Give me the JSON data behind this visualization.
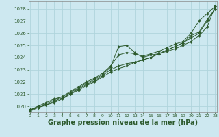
{
  "bg_color": "#cde8f0",
  "grid_color": "#b0d4dc",
  "line_color": "#2d5a2d",
  "xlabel": "Graphe pression niveau de la mer (hPa)",
  "xlabel_fontsize": 7,
  "ylabel_ticks": [
    1020,
    1021,
    1022,
    1023,
    1024,
    1025,
    1026,
    1027,
    1028
  ],
  "xticks": [
    0,
    1,
    2,
    3,
    4,
    5,
    6,
    7,
    8,
    9,
    10,
    11,
    12,
    13,
    14,
    15,
    16,
    17,
    18,
    19,
    20,
    21,
    22,
    23
  ],
  "ylim": [
    1019.5,
    1028.6
  ],
  "xlim": [
    -0.2,
    23.2
  ],
  "series": [
    [
      1019.7,
      1020.0,
      1020.3,
      1020.6,
      1020.8,
      1021.1,
      1021.5,
      1021.9,
      1022.2,
      1022.6,
      1023.2,
      1024.9,
      1025.0,
      1024.4,
      1024.0,
      1024.2,
      1024.3,
      1024.5,
      1024.7,
      1025.0,
      1025.3,
      1025.8,
      1026.5,
      1028.2
    ],
    [
      1019.7,
      1020.0,
      1020.2,
      1020.5,
      1020.8,
      1021.2,
      1021.6,
      1022.0,
      1022.3,
      1022.7,
      1023.3,
      1024.2,
      1024.4,
      1024.3,
      1024.1,
      1024.3,
      1024.5,
      1024.8,
      1025.1,
      1025.3,
      1026.0,
      1027.0,
      1027.6,
      1028.2
    ],
    [
      1019.7,
      1019.9,
      1020.1,
      1020.4,
      1020.7,
      1021.0,
      1021.4,
      1021.8,
      1022.1,
      1022.5,
      1023.0,
      1023.3,
      1023.5,
      1023.6,
      1023.8,
      1024.0,
      1024.3,
      1024.6,
      1024.9,
      1025.2,
      1025.8,
      1026.1,
      1027.1,
      1028.0
    ],
    [
      1019.6,
      1019.9,
      1020.1,
      1020.3,
      1020.6,
      1021.0,
      1021.3,
      1021.7,
      1022.0,
      1022.4,
      1022.8,
      1023.1,
      1023.3,
      1023.6,
      1023.8,
      1024.0,
      1024.3,
      1024.6,
      1024.9,
      1025.2,
      1025.6,
      1026.0,
      1027.0,
      1028.0
    ]
  ]
}
